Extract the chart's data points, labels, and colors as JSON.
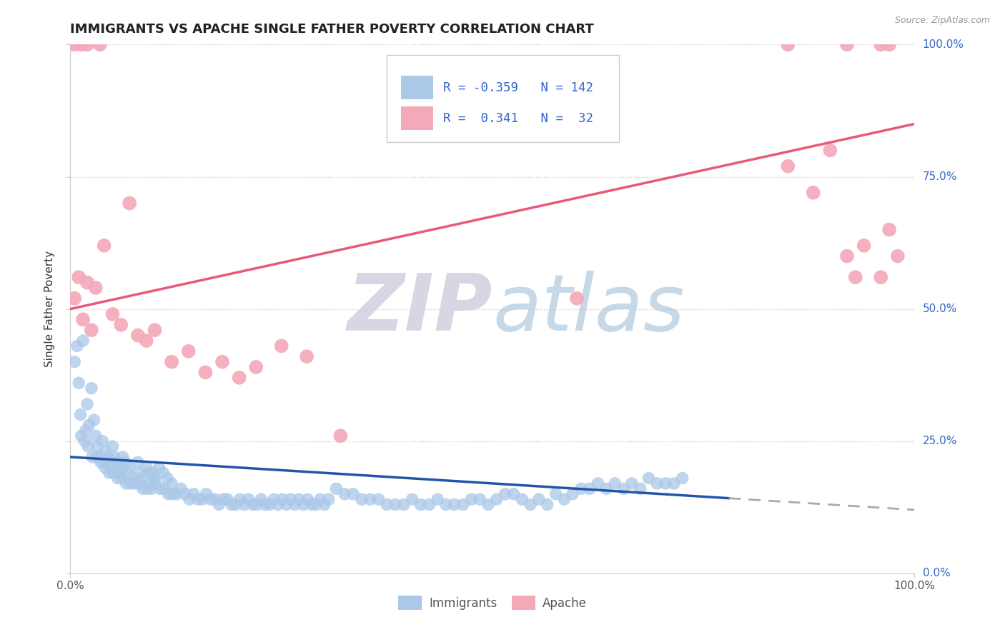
{
  "title": "IMMIGRANTS VS APACHE SINGLE FATHER POVERTY CORRELATION CHART",
  "source_text": "Source: ZipAtlas.com",
  "ylabel": "Single Father Poverty",
  "ytick_labels": [
    "0.0%",
    "25.0%",
    "50.0%",
    "75.0%",
    "100.0%"
  ],
  "ytick_values": [
    0.0,
    0.25,
    0.5,
    0.75,
    1.0
  ],
  "xlim": [
    0.0,
    1.0
  ],
  "ylim": [
    0.0,
    1.0
  ],
  "immigrants_color": "#aac8e8",
  "apache_color": "#f4a8b8",
  "trend_immigrants_color": "#2255aa",
  "trend_apache_color": "#e85878",
  "background_color": "#ffffff",
  "grid_color": "#cccccc",
  "legend_color": "#3366cc",
  "trend_imm_y_start": 0.22,
  "trend_imm_y_end": 0.12,
  "trend_imm_solid_end_x": 0.78,
  "trend_apache_y_start": 0.5,
  "trend_apache_y_end": 0.85,
  "imm_scatter_x": [
    0.005,
    0.008,
    0.01,
    0.012,
    0.015,
    0.018,
    0.02,
    0.022,
    0.025,
    0.028,
    0.03,
    0.032,
    0.035,
    0.038,
    0.04,
    0.042,
    0.045,
    0.048,
    0.05,
    0.052,
    0.055,
    0.058,
    0.06,
    0.062,
    0.065,
    0.068,
    0.07,
    0.075,
    0.08,
    0.082,
    0.085,
    0.09,
    0.092,
    0.095,
    0.098,
    0.1,
    0.105,
    0.11,
    0.115,
    0.12,
    0.013,
    0.017,
    0.021,
    0.026,
    0.031,
    0.036,
    0.041,
    0.046,
    0.051,
    0.056,
    0.061,
    0.066,
    0.071,
    0.076,
    0.081,
    0.086,
    0.091,
    0.096,
    0.101,
    0.106,
    0.111,
    0.116,
    0.121,
    0.126,
    0.131,
    0.136,
    0.141,
    0.146,
    0.151,
    0.156,
    0.161,
    0.166,
    0.171,
    0.176,
    0.181,
    0.186,
    0.191,
    0.196,
    0.201,
    0.206,
    0.211,
    0.216,
    0.221,
    0.226,
    0.231,
    0.236,
    0.241,
    0.246,
    0.251,
    0.256,
    0.261,
    0.266,
    0.271,
    0.276,
    0.281,
    0.286,
    0.291,
    0.296,
    0.301,
    0.306,
    0.315,
    0.325,
    0.335,
    0.345,
    0.355,
    0.365,
    0.375,
    0.385,
    0.395,
    0.405,
    0.415,
    0.425,
    0.435,
    0.445,
    0.455,
    0.465,
    0.475,
    0.485,
    0.495,
    0.505,
    0.515,
    0.525,
    0.535,
    0.545,
    0.555,
    0.565,
    0.575,
    0.585,
    0.595,
    0.605,
    0.615,
    0.625,
    0.635,
    0.645,
    0.655,
    0.665,
    0.675,
    0.685,
    0.695,
    0.705,
    0.715,
    0.725
  ],
  "imm_scatter_y": [
    0.4,
    0.43,
    0.36,
    0.3,
    0.44,
    0.27,
    0.32,
    0.28,
    0.35,
    0.29,
    0.26,
    0.24,
    0.22,
    0.25,
    0.21,
    0.23,
    0.22,
    0.2,
    0.24,
    0.22,
    0.21,
    0.19,
    0.2,
    0.22,
    0.21,
    0.19,
    0.2,
    0.18,
    0.21,
    0.19,
    0.18,
    0.2,
    0.19,
    0.17,
    0.19,
    0.18,
    0.2,
    0.19,
    0.18,
    0.17,
    0.26,
    0.25,
    0.24,
    0.22,
    0.22,
    0.21,
    0.2,
    0.19,
    0.19,
    0.18,
    0.18,
    0.17,
    0.17,
    0.17,
    0.17,
    0.16,
    0.16,
    0.16,
    0.17,
    0.16,
    0.16,
    0.15,
    0.15,
    0.15,
    0.16,
    0.15,
    0.14,
    0.15,
    0.14,
    0.14,
    0.15,
    0.14,
    0.14,
    0.13,
    0.14,
    0.14,
    0.13,
    0.13,
    0.14,
    0.13,
    0.14,
    0.13,
    0.13,
    0.14,
    0.13,
    0.13,
    0.14,
    0.13,
    0.14,
    0.13,
    0.14,
    0.13,
    0.14,
    0.13,
    0.14,
    0.13,
    0.13,
    0.14,
    0.13,
    0.14,
    0.16,
    0.15,
    0.15,
    0.14,
    0.14,
    0.14,
    0.13,
    0.13,
    0.13,
    0.14,
    0.13,
    0.13,
    0.14,
    0.13,
    0.13,
    0.13,
    0.14,
    0.14,
    0.13,
    0.14,
    0.15,
    0.15,
    0.14,
    0.13,
    0.14,
    0.13,
    0.15,
    0.14,
    0.15,
    0.16,
    0.16,
    0.17,
    0.16,
    0.17,
    0.16,
    0.17,
    0.16,
    0.18,
    0.17,
    0.17,
    0.17,
    0.18
  ],
  "apa_scatter_x": [
    0.005,
    0.01,
    0.015,
    0.02,
    0.025,
    0.03,
    0.04,
    0.05,
    0.06,
    0.07,
    0.08,
    0.09,
    0.1,
    0.12,
    0.14,
    0.16,
    0.18,
    0.2,
    0.22,
    0.25,
    0.28,
    0.85,
    0.88,
    0.9,
    0.92,
    0.93,
    0.94,
    0.96,
    0.97,
    0.98,
    0.6,
    0.32
  ],
  "apa_scatter_y": [
    0.52,
    0.56,
    0.48,
    0.55,
    0.46,
    0.54,
    0.62,
    0.49,
    0.47,
    0.7,
    0.45,
    0.44,
    0.46,
    0.4,
    0.42,
    0.38,
    0.4,
    0.37,
    0.39,
    0.43,
    0.41,
    0.77,
    0.72,
    0.8,
    0.6,
    0.56,
    0.62,
    0.56,
    0.65,
    0.6,
    0.52,
    0.26
  ],
  "apa_top_x": [
    0.005,
    0.013,
    0.02,
    0.035,
    0.85,
    0.92,
    0.96,
    0.97
  ],
  "apa_top_y": [
    1.0,
    1.0,
    1.0,
    1.0,
    1.0,
    1.0,
    1.0,
    1.0
  ]
}
